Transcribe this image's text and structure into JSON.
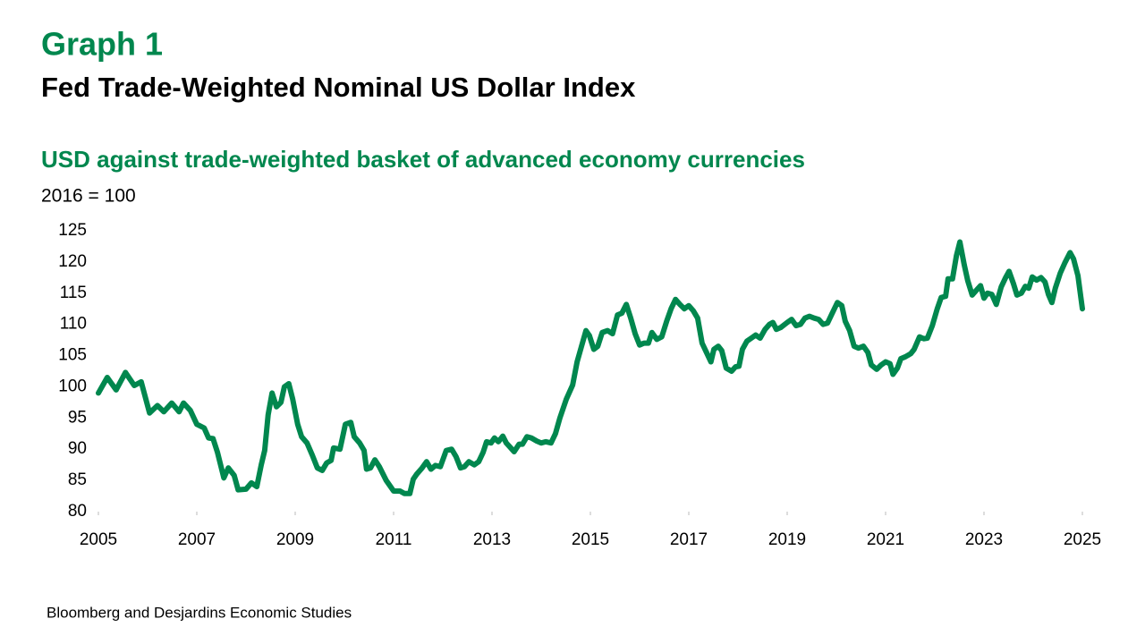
{
  "chart_data": {
    "type": "line",
    "label": "Graph 1",
    "title": "Fed Trade-Weighted Nominal US Dollar Index",
    "subtitle": "USD against trade-weighted basket of advanced economy currencies",
    "y_label": "2016 = 100",
    "source": "Bloomberg and Desjardins Economic Studies",
    "color": "#00874e",
    "xlim": [
      2005,
      2025
    ],
    "xticks": [
      2005,
      2007,
      2009,
      2011,
      2013,
      2015,
      2017,
      2019,
      2021,
      2023,
      2025
    ],
    "ylim": [
      80,
      125
    ],
    "yticks": [
      80,
      85,
      90,
      95,
      100,
      105,
      110,
      115,
      120,
      125
    ],
    "grid": false,
    "x": [
      2005.0,
      2005.18,
      2005.36,
      2005.55,
      2005.73,
      2005.87,
      2006.04,
      2006.2,
      2006.33,
      2006.49,
      2006.64,
      2006.73,
      2006.87,
      2007.0,
      2007.15,
      2007.24,
      2007.33,
      2007.42,
      2007.55,
      2007.64,
      2007.76,
      2007.84,
      2008.0,
      2008.11,
      2008.22,
      2008.31,
      2008.38,
      2008.45,
      2008.53,
      2008.62,
      2008.71,
      2008.78,
      2008.87,
      2008.95,
      2009.05,
      2009.13,
      2009.24,
      2009.35,
      2009.45,
      2009.55,
      2009.64,
      2009.73,
      2009.78,
      2009.91,
      2010.02,
      2010.13,
      2010.2,
      2010.31,
      2010.4,
      2010.45,
      2010.53,
      2010.62,
      2010.71,
      2010.85,
      2011.0,
      2011.13,
      2011.22,
      2011.33,
      2011.4,
      2011.47,
      2011.58,
      2011.67,
      2011.76,
      2011.85,
      2011.95,
      2012.07,
      2012.18,
      2012.27,
      2012.36,
      2012.44,
      2012.53,
      2012.64,
      2012.73,
      2012.82,
      2012.89,
      2012.98,
      2013.05,
      2013.13,
      2013.22,
      2013.29,
      2013.36,
      2013.45,
      2013.55,
      2013.62,
      2013.71,
      2013.8,
      2013.91,
      2014.0,
      2014.09,
      2014.2,
      2014.29,
      2014.38,
      2014.51,
      2014.64,
      2014.73,
      2014.82,
      2014.91,
      2014.98,
      2015.07,
      2015.15,
      2015.24,
      2015.35,
      2015.45,
      2015.55,
      2015.64,
      2015.73,
      2015.82,
      2015.91,
      2016.0,
      2016.09,
      2016.18,
      2016.25,
      2016.35,
      2016.45,
      2016.55,
      2016.64,
      2016.73,
      2016.82,
      2016.91,
      2017.0,
      2017.09,
      2017.18,
      2017.27,
      2017.36,
      2017.45,
      2017.51,
      2017.6,
      2017.67,
      2017.76,
      2017.87,
      2017.95,
      2018.02,
      2018.09,
      2018.18,
      2018.27,
      2018.36,
      2018.45,
      2018.55,
      2018.64,
      2018.71,
      2018.78,
      2018.87,
      2019.0,
      2019.09,
      2019.18,
      2019.27,
      2019.36,
      2019.45,
      2019.55,
      2019.64,
      2019.73,
      2019.82,
      2019.91,
      2020.02,
      2020.11,
      2020.18,
      2020.27,
      2020.36,
      2020.45,
      2020.55,
      2020.64,
      2020.71,
      2020.82,
      2020.91,
      2021.0,
      2021.09,
      2021.15,
      2021.24,
      2021.31,
      2021.4,
      2021.51,
      2021.58,
      2021.69,
      2021.78,
      2021.85,
      2021.95,
      2022.05,
      2022.13,
      2022.22,
      2022.27,
      2022.36,
      2022.44,
      2022.51,
      2022.6,
      2022.67,
      2022.76,
      2022.85,
      2022.93,
      2023.0,
      2023.07,
      2023.16,
      2023.25,
      2023.35,
      2023.44,
      2023.51,
      2023.6,
      2023.67,
      2023.76,
      2023.84,
      2023.91,
      2023.98,
      2024.07,
      2024.16,
      2024.24,
      2024.31,
      2024.38,
      2024.45,
      2024.55,
      2024.64,
      2024.75,
      2024.82,
      2024.91,
      2025.0
    ],
    "values": [
      99,
      101.5,
      99.5,
      102.3,
      100.2,
      100.8,
      95.8,
      97,
      96,
      97.4,
      96,
      97.4,
      96.2,
      94,
      93.4,
      91.8,
      91.7,
      89.5,
      85.4,
      87,
      85.8,
      83.5,
      83.6,
      84.6,
      84,
      87.5,
      89.8,
      95.5,
      99,
      96.8,
      97.5,
      100,
      100.5,
      98,
      94,
      92,
      91,
      89,
      87,
      86.6,
      87.8,
      88.2,
      90.2,
      90,
      94,
      94.3,
      92,
      91,
      89.8,
      86.8,
      87,
      88.3,
      87.2,
      85,
      83.3,
      83.3,
      82.9,
      82.9,
      85.2,
      86,
      87,
      88,
      86.8,
      87.4,
      87.2,
      89.8,
      90,
      88.8,
      87,
      87.2,
      88,
      87.5,
      88,
      89.5,
      91.2,
      91,
      91.8,
      91.2,
      92.1,
      91,
      90.4,
      89.6,
      90.8,
      90.8,
      92,
      91.8,
      91.3,
      91,
      91.2,
      91,
      92.5,
      95,
      98,
      100.3,
      104,
      106.5,
      109,
      108.2,
      106,
      106.5,
      108.7,
      109,
      108.5,
      111.5,
      111.8,
      113.2,
      111,
      108.5,
      106.7,
      107,
      107,
      108.7,
      107.6,
      108,
      110.5,
      112.5,
      114,
      113.2,
      112.5,
      113,
      112.2,
      111,
      107,
      105.5,
      104,
      106,
      106.5,
      105.8,
      103,
      102.5,
      103.2,
      103.3,
      106,
      107.3,
      107.8,
      108.3,
      107.8,
      109.2,
      110,
      110.3,
      109.2,
      109.5,
      110.3,
      110.8,
      109.8,
      110,
      111,
      111.3,
      111,
      110.8,
      110,
      110.2,
      111.7,
      113.5,
      113,
      110.5,
      109,
      106.5,
      106.2,
      106.5,
      105.5,
      103.5,
      102.8,
      103.5,
      104,
      103.7,
      102,
      103,
      104.5,
      104.8,
      105.3,
      106,
      108,
      107.7,
      107.8,
      109.8,
      112.5,
      114.3,
      114.5,
      117.3,
      117.3,
      121,
      123.2,
      119.5,
      117,
      114.7,
      115.5,
      116.2,
      114.2,
      115,
      114.8,
      113.2,
      116,
      117.5,
      118.5,
      116.5,
      114.7,
      115,
      116.1,
      115.8,
      117.6,
      117.1,
      117.5,
      116.8,
      114.8,
      113.5,
      115.8,
      118.2,
      119.8,
      121.5,
      120.5,
      117.8,
      112.5
    ]
  }
}
